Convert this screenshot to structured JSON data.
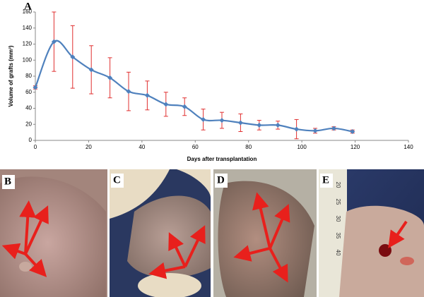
{
  "chart_data": {
    "type": "line",
    "title": "A",
    "xlabel": "Days after transplantation",
    "ylabel": "Volume of grafts (mm³)",
    "x": [
      0,
      7,
      14,
      21,
      28,
      35,
      42,
      49,
      56,
      63,
      70,
      77,
      84,
      91,
      98,
      105,
      112,
      119
    ],
    "values": [
      66,
      123,
      104,
      88,
      78,
      61,
      56,
      45,
      42,
      26,
      25,
      22,
      19,
      19,
      14,
      12,
      15,
      11
    ],
    "errors": [
      2,
      37,
      39,
      30,
      25,
      24,
      18,
      15,
      11,
      13,
      10,
      11,
      6,
      5,
      12,
      3,
      2,
      2
    ],
    "color": "#4f81bd",
    "error_color": "#e03030",
    "xlim": [
      0,
      140
    ],
    "xticks": [
      0,
      20,
      40,
      60,
      80,
      100,
      120,
      140
    ],
    "ylim": [
      0,
      160
    ],
    "yticks": [
      0,
      20,
      40,
      60,
      80,
      100,
      120,
      140,
      160
    ]
  },
  "panels": [
    {
      "label": "B"
    },
    {
      "label": "C"
    },
    {
      "label": "D"
    },
    {
      "label": "E",
      "ruler": [
        "20",
        "25",
        "30",
        "35",
        "40"
      ]
    }
  ]
}
